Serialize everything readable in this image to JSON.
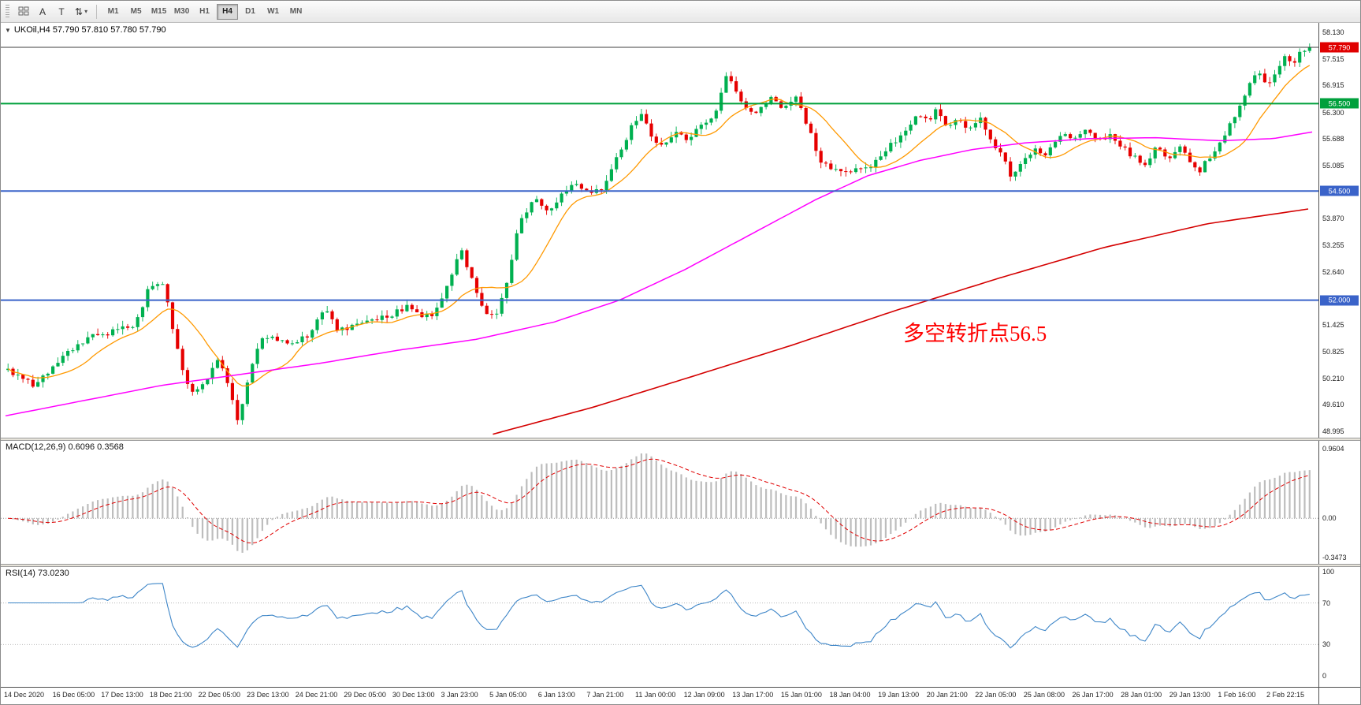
{
  "toolbar": {
    "buttons": [
      {
        "name": "chart-grid",
        "icon": "grid",
        "label": ""
      },
      {
        "name": "annotate-a",
        "label": "A"
      },
      {
        "name": "text-tool",
        "label": "T"
      },
      {
        "name": "arrows-tool",
        "label": "⇅",
        "caret": true
      }
    ],
    "timeframes": [
      "M1",
      "M5",
      "M15",
      "M30",
      "H1",
      "H4",
      "D1",
      "W1",
      "MN"
    ],
    "selected_timeframe": "H4"
  },
  "chart": {
    "collapse_arrow": "▼",
    "header": "UKOil,H4  57.790 57.810 57.780 57.790",
    "annotation_text": "多空转折点56.5",
    "annotation_color": "#ff0000",
    "price_axis": [
      {
        "text": "58.130",
        "price": 58.13
      },
      {
        "text": "57.515",
        "price": 57.515
      },
      {
        "text": "56.915",
        "price": 56.915
      },
      {
        "text": "56.300",
        "price": 56.3
      },
      {
        "text": "55.688",
        "price": 55.688
      },
      {
        "text": "55.085",
        "price": 55.085
      },
      {
        "text": "53.870",
        "price": 53.87
      },
      {
        "text": "53.255",
        "price": 53.255
      },
      {
        "text": "52.640",
        "price": 52.64
      },
      {
        "text": "51.425",
        "price": 51.425
      },
      {
        "text": "50.825",
        "price": 50.825
      },
      {
        "text": "50.210",
        "price": 50.21
      },
      {
        "text": "49.610",
        "price": 49.61
      },
      {
        "text": "48.995",
        "price": 48.995
      }
    ],
    "price_tags": [
      {
        "text": "57.790",
        "price": 57.79,
        "color": "#e00000"
      },
      {
        "text": "56.500",
        "price": 56.5,
        "color": "#00a03c"
      },
      {
        "text": "54.500",
        "price": 54.5,
        "color": "#3a63c9"
      },
      {
        "text": "52.000",
        "price": 52.0,
        "color": "#3a63c9"
      }
    ],
    "hlines": [
      {
        "name": "current-price-line",
        "price": 57.79,
        "color": "#3f3f3f",
        "width": 1
      },
      {
        "name": "resistance-line-56-5",
        "price": 56.5,
        "color": "#00a03c",
        "width": 2
      },
      {
        "name": "support-line-54-5",
        "price": 54.5,
        "color": "#3a63c9",
        "width": 2
      },
      {
        "name": "support-line-52-0",
        "price": 52.0,
        "color": "#3a63c9",
        "width": 2
      }
    ]
  },
  "macd": {
    "label": "MACD(12,26,9) 0.6096 0.3568",
    "axis": {
      "top": "0.9604",
      "zero": "0.00",
      "bottom": "-0.3473"
    },
    "histogram_color": "#bdbdbd",
    "signal_color": "#e00000"
  },
  "rsi": {
    "label": "RSI(14) 73.0230",
    "line_color": "#3e86c8",
    "axis_values": [
      100,
      70,
      30,
      0
    ],
    "levels": [
      70,
      30
    ],
    "current": 73.023
  },
  "time_axis": {
    "labels": [
      "14 Dec 2020",
      "16 Dec 05:00",
      "17 Dec 13:00",
      "18 Dec 21:00",
      "22 Dec 05:00",
      "23 Dec 13:00",
      "24 Dec 21:00",
      "29 Dec 05:00",
      "30 Dec 13:00",
      "3 Jan 23:00",
      "5 Jan 05:00",
      "6 Jan 13:00",
      "7 Jan 21:00",
      "11 Jan 00:00",
      "12 Jan 09:00",
      "13 Jan 17:00",
      "15 Jan 01:00",
      "18 Jan 04:00",
      "19 Jan 13:00",
      "20 Jan 21:00",
      "22 Jan 05:00",
      "25 Jan 08:00",
      "26 Jan 17:00",
      "28 Jan 01:00",
      "29 Jan 13:00",
      "1 Feb 16:00",
      "2 Feb 22:15"
    ]
  },
  "chart_data": {
    "type": "candlestick",
    "symbol": "UKOil",
    "timeframe": "H4",
    "current_bar": {
      "open": 57.79,
      "high": 57.81,
      "low": 57.78,
      "close": 57.79
    },
    "visible_price_range": [
      48.85,
      58.35
    ],
    "candle_count": 262,
    "up_color": "#00b050",
    "down_color": "#e60000",
    "price_path": [
      [
        0.0,
        50.4
      ],
      [
        0.019,
        50.05
      ],
      [
        0.039,
        50.6
      ],
      [
        0.065,
        51.2
      ],
      [
        0.097,
        51.4
      ],
      [
        0.11,
        52.4
      ],
      [
        0.12,
        52.3
      ],
      [
        0.13,
        50.9
      ],
      [
        0.14,
        49.8
      ],
      [
        0.153,
        50.2
      ],
      [
        0.162,
        50.7
      ],
      [
        0.17,
        49.9
      ],
      [
        0.177,
        49.15
      ],
      [
        0.185,
        50.3
      ],
      [
        0.195,
        51.2
      ],
      [
        0.214,
        51.0
      ],
      [
        0.234,
        51.25
      ],
      [
        0.244,
        51.9
      ],
      [
        0.253,
        51.3
      ],
      [
        0.273,
        51.5
      ],
      [
        0.292,
        51.6
      ],
      [
        0.305,
        51.85
      ],
      [
        0.325,
        51.6
      ],
      [
        0.338,
        52.3
      ],
      [
        0.347,
        53.2
      ],
      [
        0.357,
        52.5
      ],
      [
        0.365,
        51.8
      ],
      [
        0.375,
        51.65
      ],
      [
        0.384,
        52.5
      ],
      [
        0.393,
        53.8
      ],
      [
        0.404,
        54.3
      ],
      [
        0.416,
        54.05
      ],
      [
        0.427,
        54.5
      ],
      [
        0.436,
        54.7
      ],
      [
        0.445,
        54.45
      ],
      [
        0.458,
        54.6
      ],
      [
        0.469,
        55.3
      ],
      [
        0.479,
        56.0
      ],
      [
        0.486,
        56.3
      ],
      [
        0.495,
        55.7
      ],
      [
        0.505,
        55.6
      ],
      [
        0.514,
        55.95
      ],
      [
        0.523,
        55.65
      ],
      [
        0.534,
        56.05
      ],
      [
        0.544,
        56.35
      ],
      [
        0.552,
        57.15
      ],
      [
        0.558,
        56.9
      ],
      [
        0.566,
        56.45
      ],
      [
        0.575,
        56.35
      ],
      [
        0.586,
        56.6
      ],
      [
        0.596,
        56.45
      ],
      [
        0.605,
        56.65
      ],
      [
        0.615,
        55.9
      ],
      [
        0.625,
        55.15
      ],
      [
        0.635,
        55.0
      ],
      [
        0.644,
        54.95
      ],
      [
        0.653,
        55.1
      ],
      [
        0.662,
        54.95
      ],
      [
        0.673,
        55.45
      ],
      [
        0.683,
        55.6
      ],
      [
        0.692,
        56.0
      ],
      [
        0.7,
        56.3
      ],
      [
        0.708,
        56.15
      ],
      [
        0.714,
        56.4
      ],
      [
        0.722,
        55.95
      ],
      [
        0.731,
        56.2
      ],
      [
        0.739,
        55.9
      ],
      [
        0.747,
        56.15
      ],
      [
        0.755,
        55.6
      ],
      [
        0.764,
        55.3
      ],
      [
        0.771,
        54.75
      ],
      [
        0.779,
        55.25
      ],
      [
        0.787,
        55.45
      ],
      [
        0.796,
        55.25
      ],
      [
        0.804,
        55.65
      ],
      [
        0.812,
        55.85
      ],
      [
        0.819,
        55.65
      ],
      [
        0.829,
        55.9
      ],
      [
        0.838,
        55.65
      ],
      [
        0.845,
        55.8
      ],
      [
        0.855,
        55.45
      ],
      [
        0.864,
        55.35
      ],
      [
        0.873,
        55.15
      ],
      [
        0.882,
        55.45
      ],
      [
        0.891,
        55.25
      ],
      [
        0.9,
        55.5
      ],
      [
        0.908,
        55.15
      ],
      [
        0.916,
        54.95
      ],
      [
        0.925,
        55.35
      ],
      [
        0.934,
        55.75
      ],
      [
        0.943,
        56.2
      ],
      [
        0.952,
        56.8
      ],
      [
        0.96,
        57.2
      ],
      [
        0.968,
        56.9
      ],
      [
        0.975,
        57.35
      ],
      [
        0.982,
        57.6
      ],
      [
        0.988,
        57.45
      ],
      [
        0.995,
        57.75
      ],
      [
        1.0,
        57.79
      ]
    ],
    "ma_orange": {
      "type": "sma",
      "period": 12,
      "color": "#ff9900"
    },
    "ma_magenta": {
      "color": "#ff00ff",
      "path": [
        [
          0.0,
          49.35
        ],
        [
          0.06,
          49.7
        ],
        [
          0.12,
          50.05
        ],
        [
          0.18,
          50.3
        ],
        [
          0.24,
          50.55
        ],
        [
          0.3,
          50.85
        ],
        [
          0.36,
          51.1
        ],
        [
          0.42,
          51.5
        ],
        [
          0.47,
          52.0
        ],
        [
          0.52,
          52.7
        ],
        [
          0.57,
          53.5
        ],
        [
          0.62,
          54.3
        ],
        [
          0.66,
          54.85
        ],
        [
          0.7,
          55.2
        ],
        [
          0.74,
          55.45
        ],
        [
          0.78,
          55.6
        ],
        [
          0.83,
          55.7
        ],
        [
          0.88,
          55.72
        ],
        [
          0.93,
          55.65
        ],
        [
          0.97,
          55.7
        ],
        [
          1.0,
          55.85
        ]
      ]
    },
    "ma_red": {
      "color": "#d40000",
      "path": [
        [
          0.373,
          48.93
        ],
        [
          0.45,
          49.55
        ],
        [
          0.52,
          50.2
        ],
        [
          0.6,
          50.95
        ],
        [
          0.68,
          51.75
        ],
        [
          0.76,
          52.5
        ],
        [
          0.84,
          53.2
        ],
        [
          0.92,
          53.75
        ],
        [
          1.0,
          54.1
        ]
      ]
    },
    "indicators": [
      {
        "name": "MACD",
        "params": [
          12,
          26,
          9
        ],
        "current": [
          0.6096,
          0.3568
        ]
      },
      {
        "name": "RSI",
        "params": [
          14
        ],
        "current": 73.023
      }
    ]
  }
}
